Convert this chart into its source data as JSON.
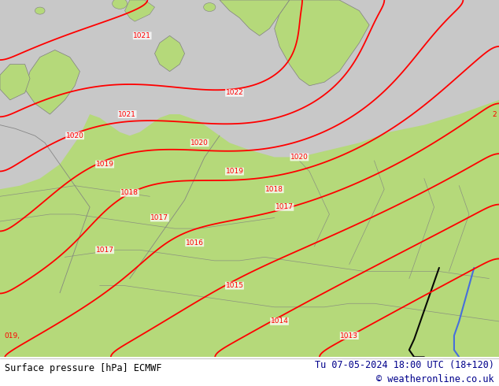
{
  "title_left": "Surface pressure [hPa] ECMWF",
  "title_right": "Tu 07-05-2024 18:00 UTC (18+120)",
  "copyright": "© weatheronline.co.uk",
  "land_color": "#b5d97a",
  "sea_color": "#c8c8c8",
  "contour_color": "#ff0000",
  "border_color": "#808080",
  "coast_color": "#808080",
  "text_color_left": "#000000",
  "text_color_right": "#00008b",
  "black_line_color": "#000000",
  "blue_line_color": "#4169E1",
  "contour_levels": [
    1013,
    1014,
    1015,
    1016,
    1017,
    1018,
    1019,
    1020,
    1021,
    1022
  ],
  "figsize": [
    6.34,
    4.9
  ],
  "dpi": 100
}
